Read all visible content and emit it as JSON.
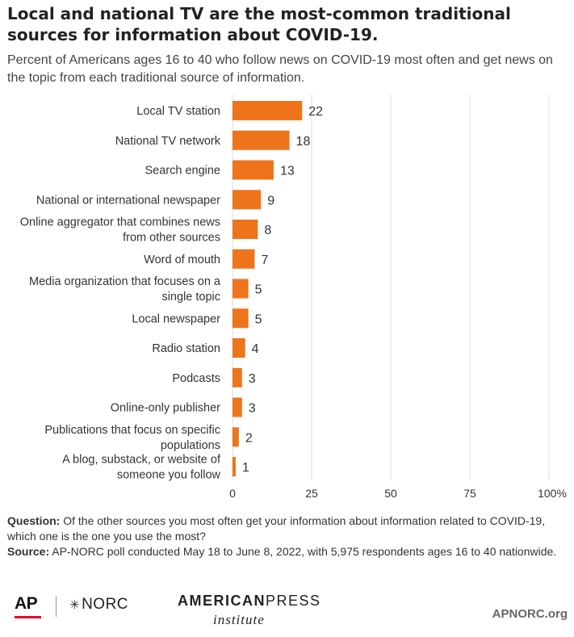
{
  "title": "Local and national TV are the most-common traditional sources for information about COVID-19.",
  "subtitle": "Percent of Americans ages 16 to 40 who follow news on COVID-19 most often and get news on the topic from each traditional source of information.",
  "notes": {
    "question_label": "Question:",
    "question_text": " Of the other sources you most often get your information about information related to COVID-19, which one is the one you use the most?",
    "source_label": "Source:",
    "source_text": " AP-NORC poll conducted May 18 to June 8, 2022, with 5,975 respondents ages 16 to 40 nationwide."
  },
  "footer": {
    "ap": "AP",
    "norc": "NORC",
    "api_bold": "AMERICAN",
    "api_rest": "PRESS",
    "api_sub": "institute",
    "site": "APNORC.org"
  },
  "colors": {
    "bar": "#ee741c",
    "grid": "#dddddd",
    "text": "#333333"
  },
  "chart_data": {
    "type": "bar",
    "orientation": "horizontal",
    "categories": [
      [
        "Local TV station"
      ],
      [
        "National TV network"
      ],
      [
        "Search engine"
      ],
      [
        "National or international newspaper"
      ],
      [
        "Online aggregator that combines news",
        "from other sources"
      ],
      [
        "Word of mouth"
      ],
      [
        "Media organization that focuses on a",
        "single topic"
      ],
      [
        "Local newspaper"
      ],
      [
        "Radio station"
      ],
      [
        "Podcasts"
      ],
      [
        "Online-only publisher"
      ],
      [
        "Publications that focus on specific",
        "populations"
      ],
      [
        "A blog, substack, or website of",
        "someone you follow"
      ]
    ],
    "values": [
      22,
      18,
      13,
      9,
      8,
      7,
      5,
      5,
      4,
      3,
      3,
      2,
      1
    ],
    "xlim": [
      0,
      100
    ],
    "ticks": [
      {
        "value": 0,
        "label": "0"
      },
      {
        "value": 25,
        "label": "25"
      },
      {
        "value": 50,
        "label": "50"
      },
      {
        "value": 75,
        "label": "75"
      },
      {
        "value": 100,
        "label": "100%"
      }
    ],
    "grid": true
  }
}
